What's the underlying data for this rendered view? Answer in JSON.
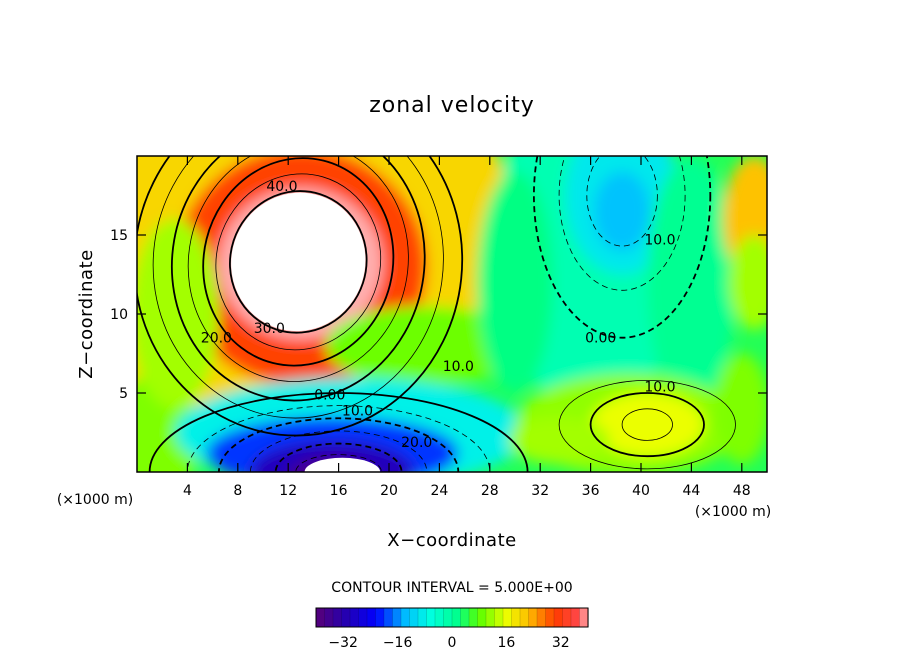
{
  "chart_data": {
    "type": "heatmap",
    "subtype": "filled-contour",
    "title": "zonal velocity",
    "xlabel": "X−coordinate",
    "ylabel": "Z−coordinate",
    "x_unit_left": "(×1000 m)",
    "x_unit_right": "(×1000 m)",
    "xlim": [
      0,
      50
    ],
    "ylim": [
      0,
      20
    ],
    "x_ticks": [
      4,
      8,
      12,
      16,
      20,
      24,
      28,
      32,
      36,
      40,
      44,
      48
    ],
    "y_ticks": [
      5,
      10,
      15
    ],
    "contour_interval_label": "CONTOUR INTERVAL = 5.000E+00",
    "contour_labels": [
      {
        "text": "40.0",
        "x": 11.5,
        "y": 18.1
      },
      {
        "text": "30.0",
        "x": 10.5,
        "y": 9.1
      },
      {
        "text": "20.0",
        "x": 6.3,
        "y": 8.5
      },
      {
        "text": "10.0",
        "x": 25.5,
        "y": 6.7
      },
      {
        "text": "0.00",
        "x": 15.3,
        "y": 4.9
      },
      {
        "text": "10.0",
        "x": 17.5,
        "y": 3.9
      },
      {
        "text": "20.0",
        "x": 22.2,
        "y": 1.9
      },
      {
        "text": "0.00",
        "x": 36.8,
        "y": 8.5
      },
      {
        "text": "10.0",
        "x": 41.5,
        "y": 14.7
      },
      {
        "text": "10.0",
        "x": 41.5,
        "y": 5.4
      }
    ],
    "features": [
      {
        "kind": "max",
        "x": 13,
        "y": 13,
        "value": 45
      },
      {
        "kind": "min",
        "x": 15.5,
        "y": 0,
        "value": -40
      },
      {
        "kind": "min",
        "x": 38.5,
        "y": 17.5,
        "value": -13
      },
      {
        "kind": "max",
        "x": 40,
        "y": 3,
        "value": 17
      },
      {
        "kind": "max",
        "x": 49,
        "y": 17,
        "value": 25
      }
    ],
    "colorbar": {
      "range": [
        -40,
        40
      ],
      "ticks": [
        -32,
        -16,
        0,
        16,
        32
      ],
      "tick_labels": [
        "−32",
        "−16",
        "0",
        "16",
        "32"
      ]
    }
  }
}
